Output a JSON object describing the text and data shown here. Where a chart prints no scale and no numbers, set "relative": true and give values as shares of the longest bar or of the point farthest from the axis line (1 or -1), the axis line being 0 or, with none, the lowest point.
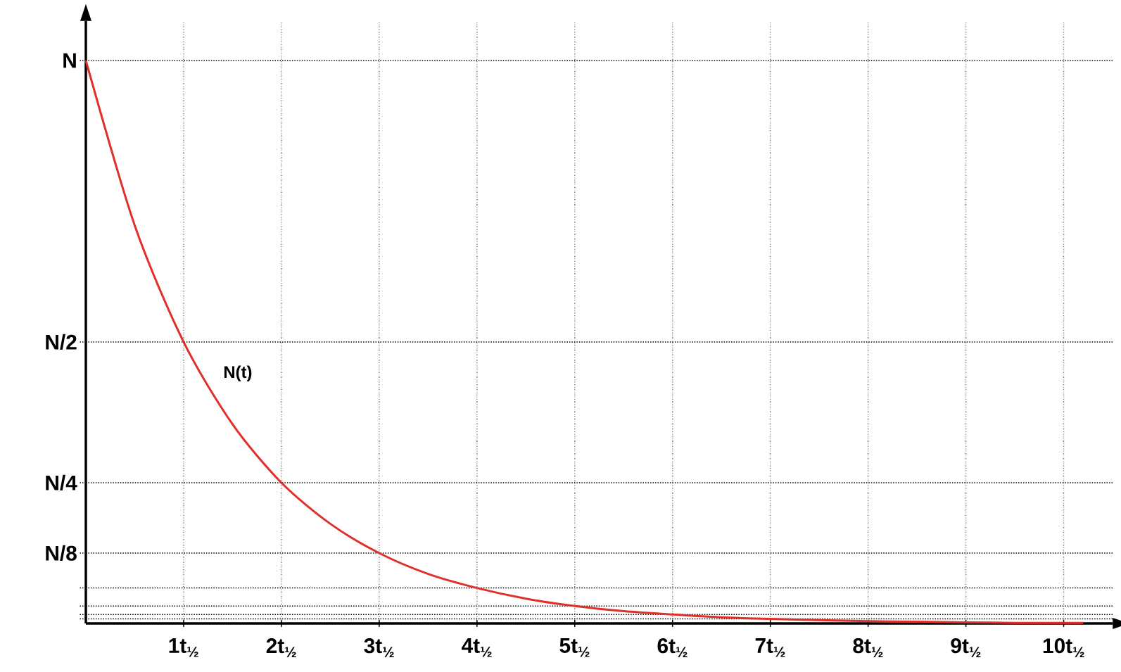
{
  "chart_data": {
    "type": "line",
    "relative": true,
    "x": [
      0,
      0.5,
      1,
      1.5,
      2,
      2.5,
      3,
      3.5,
      4,
      4.5,
      5,
      5.5,
      6,
      6.5,
      7,
      7.5,
      8,
      8.5,
      9,
      9.5,
      10,
      10.2
    ],
    "series": [
      {
        "color": "#e0302a",
        "values": [
          1,
          0.707,
          0.5,
          0.354,
          0.25,
          0.177,
          0.125,
          0.088,
          0.063,
          0.044,
          0.031,
          0.022,
          0.016,
          0.011,
          0.008,
          0.006,
          0.004,
          0.003,
          0.002,
          0.001,
          0.001,
          0.001
        ]
      }
    ],
    "xlim": [
      0,
      10.5
    ],
    "xticks": [
      {
        "value": 1,
        "label": "1t$_{½}$"
      },
      {
        "value": 2,
        "label": "2t$_{½}$"
      },
      {
        "value": 3,
        "label": "3t$_{½}$"
      },
      {
        "value": 4,
        "label": "4t$_{½}$"
      },
      {
        "value": 5,
        "label": "5t$_{½}$"
      },
      {
        "value": 6,
        "label": "6t$_{½}$"
      },
      {
        "value": 7,
        "label": "7t$_{½}$"
      },
      {
        "value": 8,
        "label": "8t$_{½}$"
      },
      {
        "value": 9,
        "label": "9t$_{½}$"
      },
      {
        "value": 10,
        "label": "10t$_{½}$"
      }
    ],
    "ref_lines": [
      {
        "axis": "y",
        "value": 1,
        "label": "N",
        "line_style": "dotted"
      },
      {
        "axis": "y",
        "value": 0.5,
        "label": "N/2",
        "line_style": "dotted"
      },
      {
        "axis": "y",
        "value": 0.25,
        "label": "N/4",
        "line_style": "dotted"
      },
      {
        "axis": "y",
        "value": 0.125,
        "label": "N/8",
        "line_style": "dotted"
      },
      {
        "axis": "y",
        "value": 0.063,
        "line_style": "dotted"
      },
      {
        "axis": "y",
        "value": 0.031,
        "line_style": "dotted"
      },
      {
        "axis": "y",
        "value": 0.016,
        "line_style": "dotted"
      },
      {
        "axis": "y",
        "value": 0.008,
        "line_style": "dotted"
      }
    ],
    "annotations": [
      "N(t)"
    ],
    "grid": "x",
    "marker": "none",
    "line_style": "solid"
  }
}
